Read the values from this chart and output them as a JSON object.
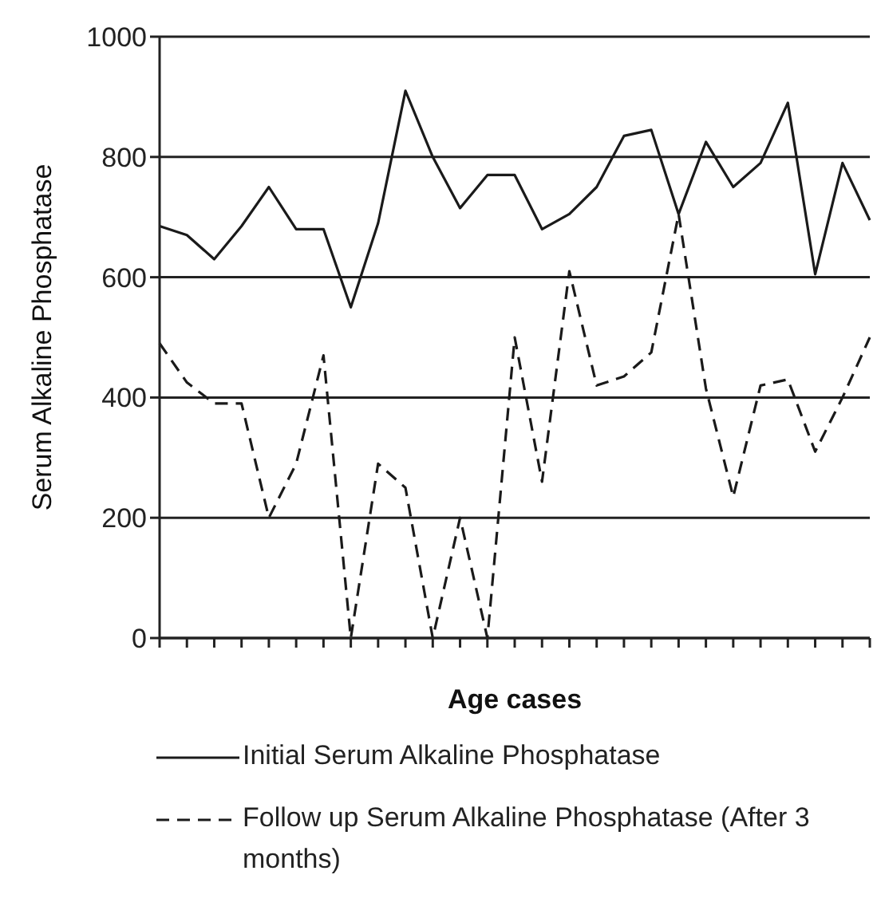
{
  "chart_data": {
    "type": "line",
    "xlabel": "Age cases",
    "ylabel": "Serum Alkaline Phosphatase",
    "categories": [
      null,
      null,
      null,
      null,
      null,
      null,
      null,
      null,
      null,
      null,
      null,
      null,
      null,
      null,
      null,
      null,
      null,
      null,
      null,
      null,
      null,
      null,
      null,
      null,
      null,
      null,
      null
    ],
    "series": [
      {
        "name": "Initial Serum Alkaline Phosphatase",
        "color": "#1a1a1a",
        "line_style": "solid",
        "values": [
          685,
          670,
          630,
          685,
          750,
          680,
          680,
          550,
          690,
          910,
          800,
          715,
          770,
          770,
          680,
          705,
          750,
          835,
          845,
          705,
          825,
          750,
          790,
          890,
          605,
          790,
          695
        ]
      },
      {
        "name": "Follow up Serum Alkaline Phosphatase (After 3 months)",
        "color": "#1a1a1a",
        "line_style": "dashed",
        "values": [
          490,
          425,
          390,
          390,
          200,
          290,
          470,
          0,
          290,
          250,
          0,
          200,
          0,
          500,
          260,
          610,
          420,
          435,
          475,
          705,
          415,
          235,
          420,
          430,
          310,
          400,
          500
        ]
      }
    ],
    "ylim": [
      0,
      1000
    ],
    "yticks": [
      0,
      200,
      400,
      600,
      800,
      1000
    ],
    "grid": "y",
    "legend": "bottom",
    "marker": "none"
  }
}
